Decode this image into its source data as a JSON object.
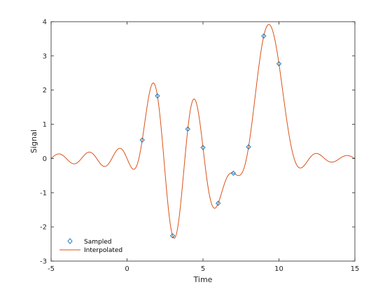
{
  "chart_data": {
    "type": "line",
    "title": "",
    "xlabel": "Time",
    "ylabel": "Signal",
    "xlim": [
      -5,
      15
    ],
    "ylim": [
      -3,
      4
    ],
    "x_ticks": [
      -5,
      0,
      5,
      10,
      15
    ],
    "y_ticks": [
      -3,
      -2,
      -1,
      0,
      1,
      2,
      3,
      4
    ],
    "grid": false,
    "legend_position": "bottom-left",
    "series": [
      {
        "name": "Sampled",
        "kind": "markers",
        "marker": "diamond",
        "color": "#0072BD",
        "x": [
          1,
          2,
          3,
          4,
          5,
          6,
          7,
          8,
          9,
          10
        ],
        "y": [
          0.54,
          1.83,
          -2.26,
          0.86,
          0.32,
          -1.31,
          -0.43,
          0.34,
          3.58,
          2.77
        ]
      },
      {
        "name": "Interpolated",
        "kind": "line",
        "color": "#D95319",
        "method": "sinc interpolation of Sampled points"
      }
    ]
  }
}
